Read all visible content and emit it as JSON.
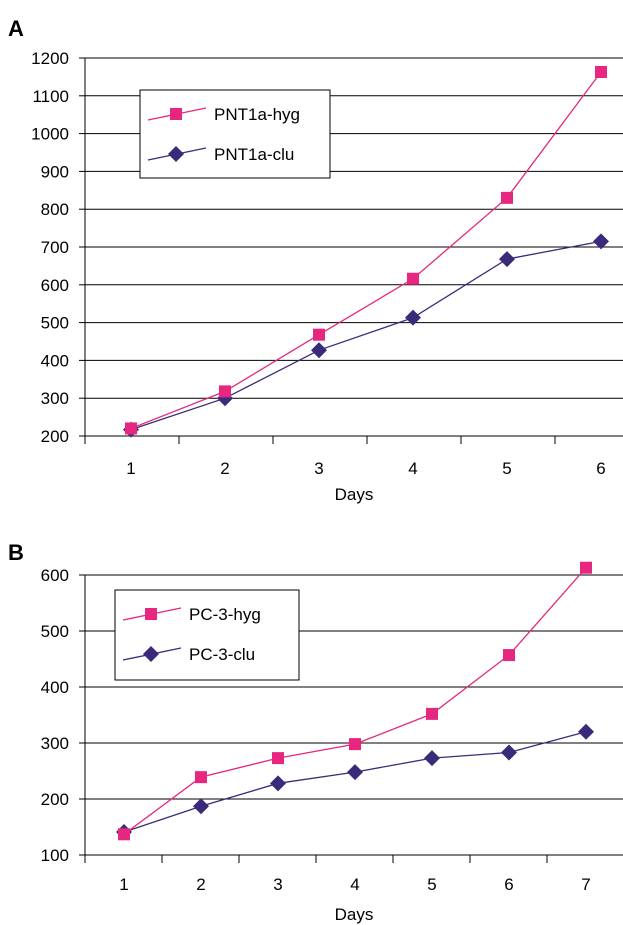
{
  "chart_data": [
    {
      "panel": "A",
      "type": "line",
      "xlabel": "Days",
      "ylabel": "",
      "categories": [
        "1",
        "2",
        "3",
        "4",
        "5",
        "6"
      ],
      "ylim": [
        200,
        1200
      ],
      "yticks": [
        200,
        300,
        400,
        500,
        600,
        700,
        800,
        900,
        1000,
        1100,
        1200
      ],
      "grid": true,
      "legend": "top-left",
      "series": [
        {
          "name": "PNT1a-hyg",
          "color": "#e6267f",
          "marker": "square",
          "values": [
            220,
            318,
            468,
            616,
            830,
            1163
          ]
        },
        {
          "name": "PNT1a-clu",
          "color": "#3b2a7a",
          "marker": "diamond",
          "values": [
            217,
            300,
            427,
            513,
            668,
            715
          ]
        }
      ]
    },
    {
      "panel": "B",
      "type": "line",
      "xlabel": "Days",
      "ylabel": "",
      "categories": [
        "1",
        "2",
        "3",
        "4",
        "5",
        "6",
        "7"
      ],
      "ylim": [
        100,
        600
      ],
      "yticks": [
        100,
        200,
        300,
        400,
        500,
        600
      ],
      "grid": true,
      "legend": "top-left",
      "series": [
        {
          "name": "PC-3-hyg",
          "color": "#e6267f",
          "marker": "square",
          "values": [
            137,
            239,
            273,
            298,
            352,
            457,
            613
          ]
        },
        {
          "name": "PC-3-clu",
          "color": "#3b2a7a",
          "marker": "diamond",
          "values": [
            141,
            187,
            228,
            248,
            273,
            283,
            320
          ]
        }
      ]
    }
  ]
}
